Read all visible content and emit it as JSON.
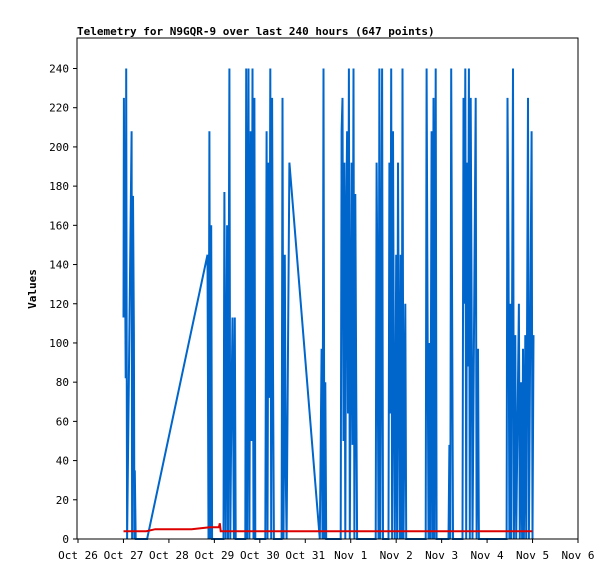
{
  "chart_data": {
    "type": "line",
    "title": "Telemetry for N9GQR-9 over last 240 hours (647 points)",
    "ylabel": "Values",
    "xlabel": "",
    "ylim": [
      0,
      255
    ],
    "xlim_days": [
      0,
      11
    ],
    "grid": false,
    "x_ticks": [
      {
        "label": "Oct 26",
        "day": 0
      },
      {
        "label": "Oct 27",
        "day": 1
      },
      {
        "label": "Oct 28",
        "day": 2
      },
      {
        "label": "Oct 29",
        "day": 3
      },
      {
        "label": "Oct 30",
        "day": 4
      },
      {
        "label": "Oct 31",
        "day": 5
      },
      {
        "label": "Nov 1",
        "day": 6
      },
      {
        "label": "Nov 2",
        "day": 7
      },
      {
        "label": "Nov 3",
        "day": 8
      },
      {
        "label": "Nov 4",
        "day": 9
      },
      {
        "label": "Nov 5",
        "day": 10
      },
      {
        "label": "Nov 6",
        "day": 11
      }
    ],
    "y_ticks": [
      0,
      20,
      40,
      60,
      80,
      100,
      120,
      140,
      160,
      180,
      200,
      220,
      240
    ],
    "series": [
      {
        "color": "#0066cc",
        "points": [
          [
            1.0,
            113
          ],
          [
            1.01,
            225
          ],
          [
            1.02,
            160
          ],
          [
            1.03,
            200
          ],
          [
            1.04,
            120
          ],
          [
            1.05,
            82
          ],
          [
            1.06,
            240
          ],
          [
            1.07,
            120
          ],
          [
            1.08,
            0
          ],
          [
            1.18,
            208
          ],
          [
            1.19,
            0
          ],
          [
            1.21,
            175
          ],
          [
            1.23,
            104
          ],
          [
            1.24,
            0
          ],
          [
            1.25,
            35
          ],
          [
            1.27,
            0
          ],
          [
            1.52,
            0
          ],
          [
            2.85,
            145
          ],
          [
            2.87,
            0
          ],
          [
            2.89,
            208
          ],
          [
            2.91,
            0
          ],
          [
            2.93,
            160
          ],
          [
            2.95,
            0
          ],
          [
            3.2,
            0
          ],
          [
            3.22,
            177
          ],
          [
            3.25,
            0
          ],
          [
            3.28,
            160
          ],
          [
            3.3,
            0
          ],
          [
            3.33,
            240
          ],
          [
            3.35,
            0
          ],
          [
            3.37,
            56
          ],
          [
            3.4,
            113
          ],
          [
            3.43,
            0
          ],
          [
            3.45,
            113
          ],
          [
            3.47,
            0
          ],
          [
            3.68,
            0
          ],
          [
            3.7,
            240
          ],
          [
            3.72,
            0
          ],
          [
            3.75,
            240
          ],
          [
            3.77,
            0
          ],
          [
            3.8,
            208
          ],
          [
            3.82,
            50
          ],
          [
            3.84,
            240
          ],
          [
            3.86,
            0
          ],
          [
            3.88,
            225
          ],
          [
            3.9,
            0
          ],
          [
            4.12,
            0
          ],
          [
            4.15,
            208
          ],
          [
            4.17,
            0
          ],
          [
            4.19,
            192
          ],
          [
            4.21,
            72
          ],
          [
            4.23,
            240
          ],
          [
            4.25,
            0
          ],
          [
            4.27,
            225
          ],
          [
            4.29,
            88
          ],
          [
            4.31,
            0
          ],
          [
            4.48,
            0
          ],
          [
            4.5,
            225
          ],
          [
            4.52,
            0
          ],
          [
            4.55,
            145
          ],
          [
            4.57,
            35
          ],
          [
            4.59,
            0
          ],
          [
            4.62,
            97
          ],
          [
            4.65,
            192
          ],
          [
            5.32,
            0
          ],
          [
            5.36,
            97
          ],
          [
            5.38,
            0
          ],
          [
            5.4,
            240
          ],
          [
            5.42,
            0
          ],
          [
            5.44,
            80
          ],
          [
            5.46,
            0
          ],
          [
            5.78,
            0
          ],
          [
            5.8,
            208
          ],
          [
            5.82,
            225
          ],
          [
            5.84,
            50
          ],
          [
            5.86,
            192
          ],
          [
            5.88,
            0
          ],
          [
            5.9,
            160
          ],
          [
            5.92,
            208
          ],
          [
            5.94,
            64
          ],
          [
            5.96,
            240
          ],
          [
            5.98,
            0
          ],
          [
            6.02,
            192
          ],
          [
            6.04,
            48
          ],
          [
            6.06,
            240
          ],
          [
            6.08,
            0
          ],
          [
            6.1,
            176
          ],
          [
            6.12,
            80
          ],
          [
            6.14,
            0
          ],
          [
            6.55,
            0
          ],
          [
            6.57,
            192
          ],
          [
            6.59,
            120
          ],
          [
            6.61,
            0
          ],
          [
            6.63,
            240
          ],
          [
            6.65,
            0
          ],
          [
            6.67,
            120
          ],
          [
            6.69,
            240
          ],
          [
            6.71,
            0
          ],
          [
            6.83,
            0
          ],
          [
            6.85,
            192
          ],
          [
            6.87,
            64
          ],
          [
            6.89,
            240
          ],
          [
            6.91,
            0
          ],
          [
            6.93,
            208
          ],
          [
            6.95,
            80
          ],
          [
            6.97,
            0
          ],
          [
            7.0,
            145
          ],
          [
            7.02,
            0
          ],
          [
            7.04,
            192
          ],
          [
            7.06,
            88
          ],
          [
            7.08,
            0
          ],
          [
            7.1,
            145
          ],
          [
            7.12,
            0
          ],
          [
            7.14,
            240
          ],
          [
            7.16,
            0
          ],
          [
            7.2,
            120
          ],
          [
            7.22,
            0
          ],
          [
            7.65,
            0
          ],
          [
            7.67,
            240
          ],
          [
            7.69,
            120
          ],
          [
            7.71,
            0
          ],
          [
            7.73,
            100
          ],
          [
            7.75,
            0
          ],
          [
            7.78,
            208
          ],
          [
            7.8,
            0
          ],
          [
            7.82,
            225
          ],
          [
            7.84,
            0
          ],
          [
            7.87,
            240
          ],
          [
            7.89,
            0
          ],
          [
            8.15,
            0
          ],
          [
            8.17,
            48
          ],
          [
            8.19,
            0
          ],
          [
            8.21,
            240
          ],
          [
            8.23,
            120
          ],
          [
            8.25,
            0
          ],
          [
            8.46,
            0
          ],
          [
            8.48,
            225
          ],
          [
            8.5,
            120
          ],
          [
            8.52,
            240
          ],
          [
            8.54,
            0
          ],
          [
            8.56,
            192
          ],
          [
            8.58,
            88
          ],
          [
            8.6,
            240
          ],
          [
            8.62,
            0
          ],
          [
            8.64,
            225
          ],
          [
            8.66,
            120
          ],
          [
            8.68,
            0
          ],
          [
            8.75,
            225
          ],
          [
            8.77,
            0
          ],
          [
            8.8,
            97
          ],
          [
            8.82,
            0
          ],
          [
            9.43,
            0
          ],
          [
            9.45,
            225
          ],
          [
            9.47,
            145
          ],
          [
            9.49,
            0
          ],
          [
            9.51,
            120
          ],
          [
            9.53,
            0
          ],
          [
            9.57,
            240
          ],
          [
            9.59,
            0
          ],
          [
            9.62,
            104
          ],
          [
            9.64,
            0
          ],
          [
            9.7,
            120
          ],
          [
            9.72,
            0
          ],
          [
            9.75,
            80
          ],
          [
            9.77,
            0
          ],
          [
            9.79,
            97
          ],
          [
            9.81,
            0
          ],
          [
            9.84,
            104
          ],
          [
            9.86,
            0
          ],
          [
            9.9,
            225
          ],
          [
            9.92,
            0
          ],
          [
            9.98,
            208
          ],
          [
            10.0,
            0
          ],
          [
            10.02,
            104
          ]
        ]
      },
      {
        "color": "#dd0000",
        "points": [
          [
            1.0,
            4
          ],
          [
            1.5,
            4
          ],
          [
            1.7,
            5
          ],
          [
            2.5,
            5
          ],
          [
            2.9,
            6
          ],
          [
            3.1,
            6
          ],
          [
            3.12,
            8
          ],
          [
            3.14,
            4
          ],
          [
            5.5,
            4
          ],
          [
            7.5,
            4
          ],
          [
            10.0,
            4
          ]
        ]
      }
    ]
  }
}
